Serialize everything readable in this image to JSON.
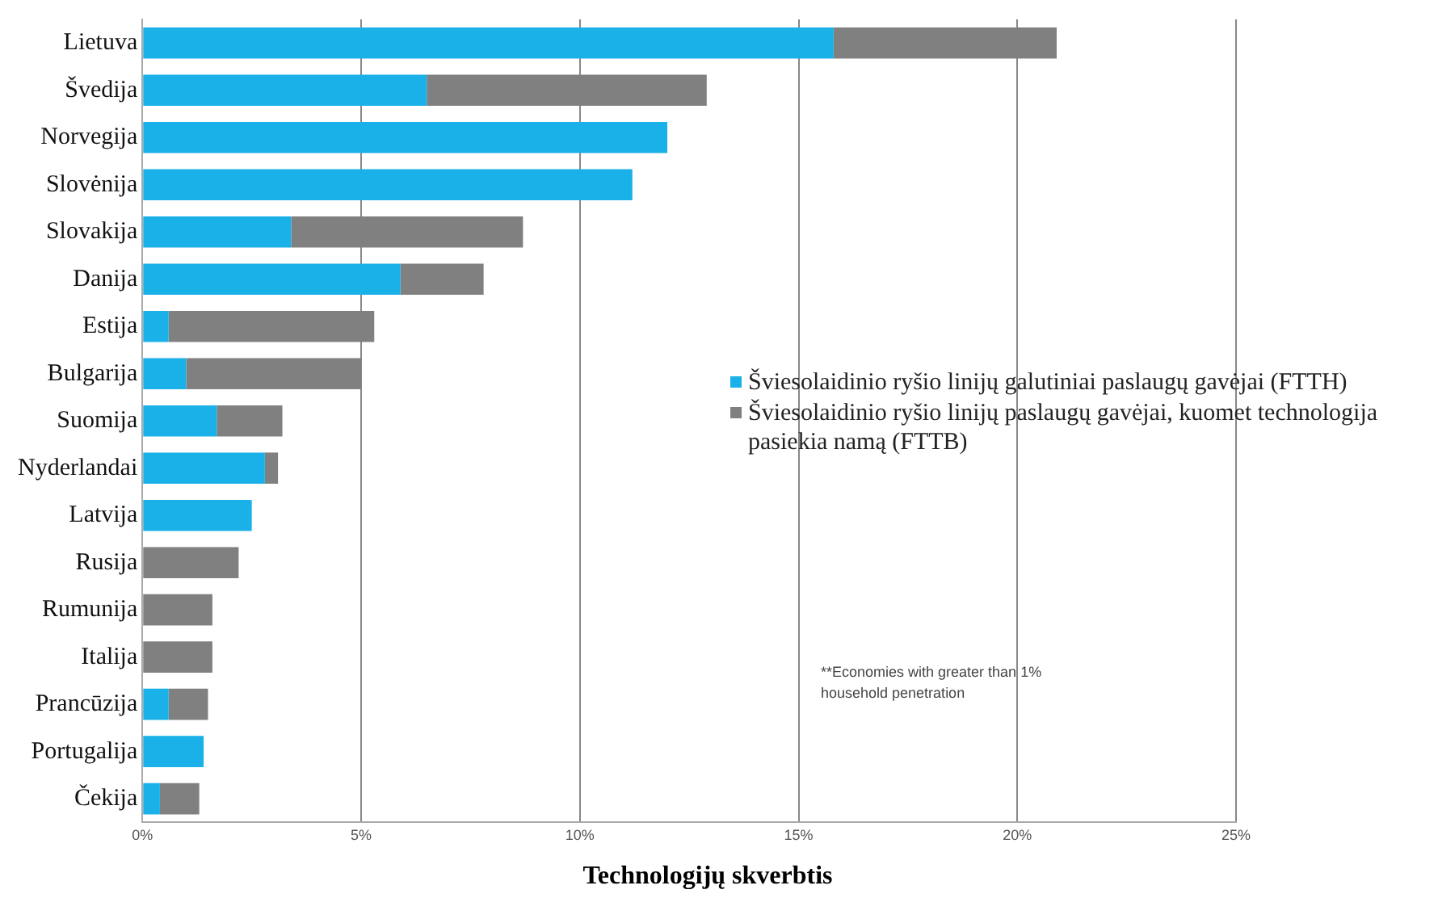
{
  "chart_data": {
    "type": "bar",
    "orientation": "horizontal",
    "stacked": true,
    "categories": [
      "Lietuva",
      "Švedija",
      "Norvegija",
      "Slovėnija",
      "Slovakija",
      "Danija",
      "Estija",
      "Bulgarija",
      "Suomija",
      "Nyderlandai",
      "Latvija",
      "Rusija",
      "Rumunija",
      "Italija",
      "Prancūzija",
      "Portugalija",
      "Čekija"
    ],
    "series": [
      {
        "name": "Šviesolaidinio ryšio linijų galutiniai paslaugų gavėjai (FTTH)",
        "color": "#1ab0e8",
        "values": [
          15.8,
          6.5,
          12.0,
          11.2,
          3.4,
          5.9,
          0.6,
          1.0,
          1.7,
          2.8,
          2.5,
          0,
          0,
          0,
          0.6,
          1.4,
          0.4
        ]
      },
      {
        "name": "Šviesolaidinio ryšio linijų paslaugų gavėjai, kuomet technologija pasiekia namą (FTTB)",
        "color": "#808080",
        "values": [
          5.1,
          6.4,
          0,
          0,
          5.3,
          1.9,
          4.7,
          4.0,
          1.5,
          0.3,
          0,
          2.2,
          1.6,
          1.6,
          0.9,
          0,
          0.9
        ]
      }
    ],
    "xlim": [
      0,
      25
    ],
    "xticks": [
      {
        "value": 0,
        "label": "0%"
      },
      {
        "value": 5,
        "label": "5%"
      },
      {
        "value": 10,
        "label": "10%"
      },
      {
        "value": 15,
        "label": "15%"
      },
      {
        "value": 20,
        "label": "20%"
      },
      {
        "value": 25,
        "label": "25%"
      }
    ],
    "xlabel": "Technologijų skverbtis",
    "grid": "x",
    "legend": "right",
    "annotations": [
      "**Economies with greater than 1% household penetration"
    ]
  }
}
